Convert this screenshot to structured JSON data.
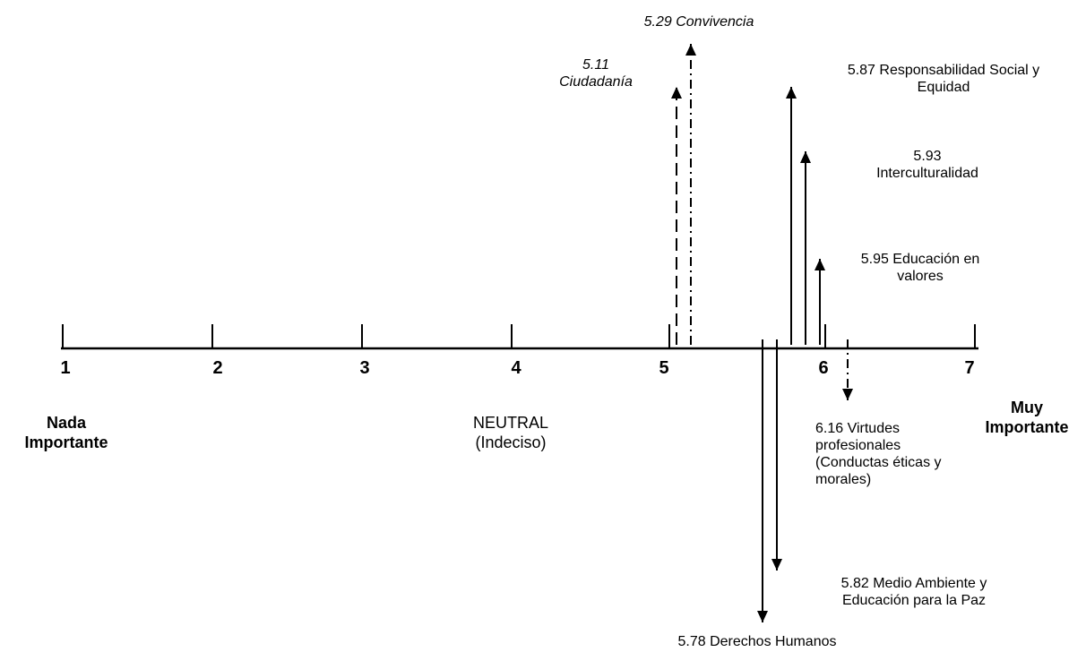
{
  "scale": {
    "ticks": [
      "1",
      "2",
      "3",
      "4",
      "5",
      "6",
      "7"
    ],
    "left_pole": [
      "Nada",
      "Importante"
    ],
    "neutral": [
      "NEUTRAL",
      "(Indeciso)"
    ],
    "right_pole": [
      "Muy",
      "Importante"
    ]
  },
  "items": [
    {
      "value": 5.11,
      "direction": "up",
      "style": "dashed",
      "lines": [
        "5.11",
        "Ciudadanía"
      ],
      "italic": true
    },
    {
      "value": 5.29,
      "direction": "up",
      "style": "dashdot",
      "lines": [
        "5.29 Convivencia"
      ],
      "italic": true
    },
    {
      "value": 5.87,
      "direction": "up",
      "style": "solid",
      "lines": [
        "5.87 Responsabilidad Social y",
        "Equidad"
      ],
      "italic": false
    },
    {
      "value": 5.93,
      "direction": "up",
      "style": "solid",
      "lines": [
        "5.93",
        "Interculturalidad"
      ],
      "italic": false
    },
    {
      "value": 5.95,
      "direction": "up",
      "style": "solid",
      "lines": [
        "5.95  Educación en",
        "valores"
      ],
      "italic": false
    },
    {
      "value": 6.16,
      "direction": "down",
      "style": "dashdot",
      "lines": [
        "6.16 Virtudes",
        "profesionales",
        "(Conductas éticas y",
        "morales)"
      ],
      "italic": false
    },
    {
      "value": 5.82,
      "direction": "down",
      "style": "solid",
      "lines": [
        "5.82 Medio Ambiente y",
        "Educación para la Paz"
      ],
      "italic": false
    },
    {
      "value": 5.78,
      "direction": "down",
      "style": "solid",
      "lines": [
        "5.78 Derechos Humanos"
      ],
      "italic": false
    }
  ],
  "colors": {
    "stroke": "#000000",
    "background": "#ffffff"
  }
}
